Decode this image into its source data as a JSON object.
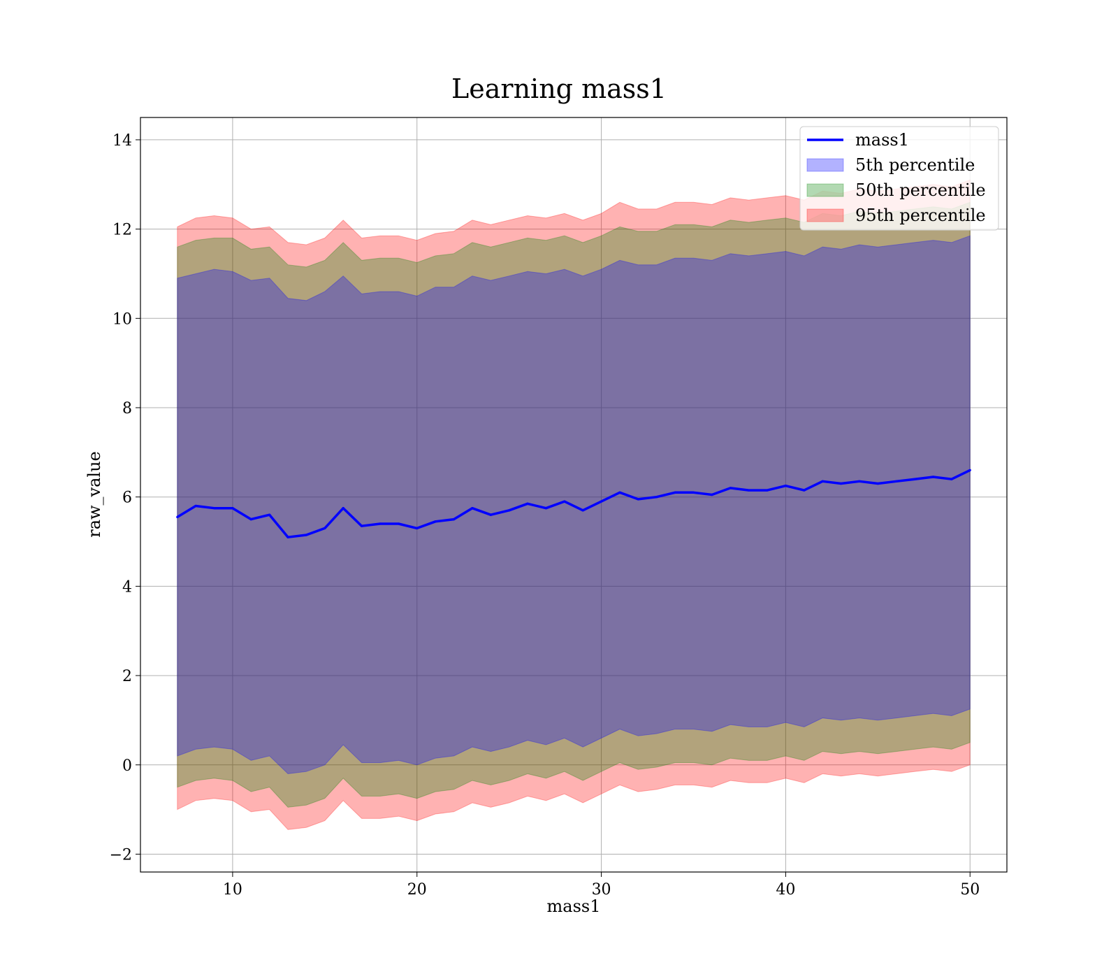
{
  "chart_data": {
    "type": "line",
    "title": "Learning mass1",
    "xlabel": "mass1",
    "ylabel": "raw_value",
    "xlim": [
      5,
      52
    ],
    "ylim": [
      -2.4,
      14.5
    ],
    "xticks": [
      10,
      20,
      30,
      40,
      50
    ],
    "yticks": [
      -2,
      0,
      2,
      4,
      6,
      8,
      10,
      12,
      14
    ],
    "xtick_labels": [
      "10",
      "20",
      "30",
      "40",
      "50"
    ],
    "ytick_labels": [
      "−2",
      "0",
      "2",
      "4",
      "6",
      "8",
      "10",
      "12",
      "14"
    ],
    "grid": true,
    "legend_position": "top-right",
    "legend": [
      "mass1",
      "5th percentile",
      "50th percentile",
      "95th percentile"
    ],
    "colors": {
      "line": "#0000ff",
      "band_5": "#0000ff",
      "band_50": "#008000",
      "band_95": "#ff0000"
    },
    "x": [
      7.0,
      8.0,
      9.0,
      10.0,
      11.0,
      12.0,
      13.0,
      14.0,
      15.0,
      16.0,
      17.0,
      18.0,
      19.0,
      20.0,
      21.0,
      22.0,
      23.0,
      24.0,
      25.0,
      26.0,
      27.0,
      28.0,
      29.0,
      30.0,
      31.0,
      32.0,
      33.0,
      34.0,
      35.0,
      36.0,
      37.0,
      38.0,
      39.0,
      40.0,
      41.0,
      42.0,
      43.0,
      44.0,
      45.0,
      46.0,
      47.0,
      48.0,
      49.0,
      50.0
    ],
    "series": [
      {
        "name": "mass1",
        "values": [
          5.55,
          5.8,
          5.75,
          5.75,
          5.5,
          5.6,
          5.1,
          5.15,
          5.3,
          5.75,
          5.35,
          5.4,
          5.4,
          5.3,
          5.45,
          5.5,
          5.75,
          5.6,
          5.7,
          5.85,
          5.75,
          5.9,
          5.7,
          5.9,
          6.1,
          5.95,
          6.0,
          6.1,
          6.1,
          6.05,
          6.2,
          6.15,
          6.15,
          6.25,
          6.15,
          6.35,
          6.3,
          6.35,
          6.3,
          6.35,
          6.4,
          6.45,
          6.4,
          6.6
        ]
      },
      {
        "name": "5th percentile",
        "upper": [
          10.9,
          11.0,
          11.1,
          11.05,
          10.85,
          10.9,
          10.45,
          10.4,
          10.6,
          10.95,
          10.55,
          10.6,
          10.6,
          10.5,
          10.7,
          10.7,
          10.95,
          10.85,
          10.95,
          11.05,
          11.0,
          11.1,
          10.95,
          11.1,
          11.3,
          11.2,
          11.2,
          11.35,
          11.35,
          11.3,
          11.45,
          11.4,
          11.45,
          11.5,
          11.4,
          11.6,
          11.55,
          11.65,
          11.6,
          11.65,
          11.7,
          11.75,
          11.7,
          11.85
        ],
        "lower": [
          0.2,
          0.35,
          0.4,
          0.35,
          0.1,
          0.2,
          -0.2,
          -0.15,
          0.0,
          0.45,
          0.05,
          0.05,
          0.1,
          0.0,
          0.15,
          0.2,
          0.4,
          0.3,
          0.4,
          0.55,
          0.45,
          0.6,
          0.4,
          0.6,
          0.8,
          0.65,
          0.7,
          0.8,
          0.8,
          0.75,
          0.9,
          0.85,
          0.85,
          0.95,
          0.85,
          1.05,
          1.0,
          1.05,
          1.0,
          1.05,
          1.1,
          1.15,
          1.1,
          1.25
        ]
      },
      {
        "name": "50th percentile",
        "upper": [
          11.6,
          11.75,
          11.8,
          11.8,
          11.55,
          11.6,
          11.2,
          11.15,
          11.3,
          11.7,
          11.3,
          11.35,
          11.35,
          11.25,
          11.4,
          11.45,
          11.7,
          11.6,
          11.7,
          11.8,
          11.75,
          11.85,
          11.7,
          11.85,
          12.05,
          11.95,
          11.95,
          12.1,
          12.1,
          12.05,
          12.2,
          12.15,
          12.2,
          12.25,
          12.15,
          12.35,
          12.3,
          12.4,
          12.35,
          12.4,
          12.45,
          12.5,
          12.45,
          12.6
        ],
        "lower": [
          -0.5,
          -0.35,
          -0.3,
          -0.35,
          -0.6,
          -0.5,
          -0.95,
          -0.9,
          -0.75,
          -0.3,
          -0.7,
          -0.7,
          -0.65,
          -0.75,
          -0.6,
          -0.55,
          -0.35,
          -0.45,
          -0.35,
          -0.2,
          -0.3,
          -0.15,
          -0.35,
          -0.15,
          0.05,
          -0.1,
          -0.05,
          0.05,
          0.05,
          0.0,
          0.15,
          0.1,
          0.1,
          0.2,
          0.1,
          0.3,
          0.25,
          0.3,
          0.25,
          0.3,
          0.35,
          0.4,
          0.35,
          0.5
        ]
      },
      {
        "name": "95th percentile",
        "upper": [
          12.05,
          12.25,
          12.3,
          12.25,
          12.0,
          12.05,
          11.7,
          11.65,
          11.8,
          12.2,
          11.8,
          11.85,
          11.85,
          11.75,
          11.9,
          11.95,
          12.2,
          12.1,
          12.2,
          12.3,
          12.25,
          12.35,
          12.2,
          12.35,
          12.6,
          12.45,
          12.45,
          12.6,
          12.6,
          12.55,
          12.7,
          12.65,
          12.7,
          12.75,
          12.65,
          12.85,
          12.8,
          12.9,
          12.85,
          12.9,
          12.95,
          13.0,
          12.95,
          13.1
        ],
        "lower": [
          -1.0,
          -0.8,
          -0.75,
          -0.8,
          -1.05,
          -1.0,
          -1.45,
          -1.4,
          -1.25,
          -0.8,
          -1.2,
          -1.2,
          -1.15,
          -1.25,
          -1.1,
          -1.05,
          -0.85,
          -0.95,
          -0.85,
          -0.7,
          -0.8,
          -0.65,
          -0.85,
          -0.65,
          -0.45,
          -0.6,
          -0.55,
          -0.45,
          -0.45,
          -0.5,
          -0.35,
          -0.4,
          -0.4,
          -0.3,
          -0.4,
          -0.2,
          -0.25,
          -0.2,
          -0.25,
          -0.2,
          -0.15,
          -0.1,
          -0.15,
          0.0
        ]
      }
    ]
  }
}
